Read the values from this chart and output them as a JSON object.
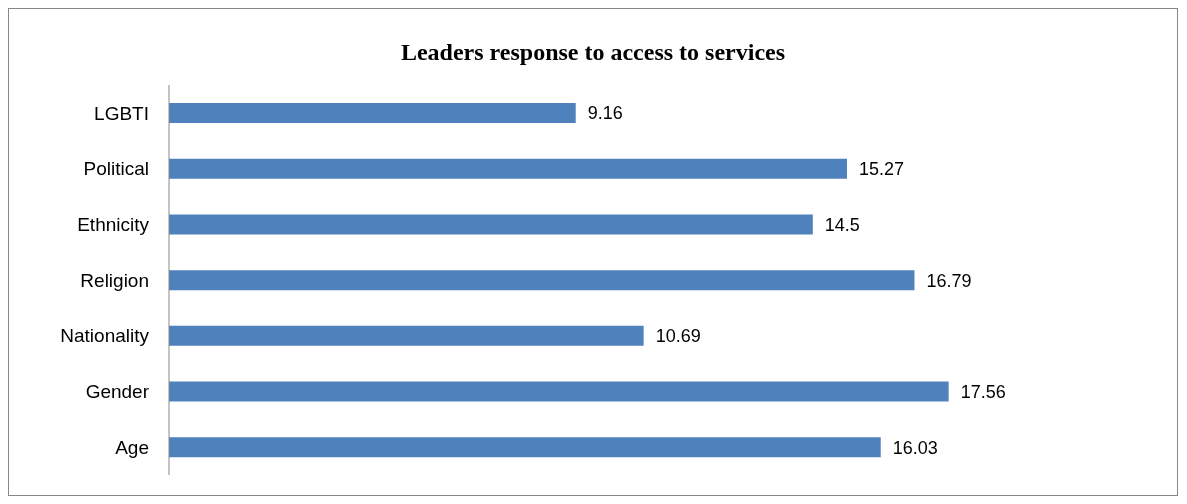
{
  "chart_data": {
    "type": "bar",
    "title": "Leaders response to access to services",
    "orientation": "horizontal",
    "categories": [
      "LGBTI",
      "Political",
      "Ethnicity",
      "Religion",
      "Nationality",
      "Gender",
      "Age"
    ],
    "values": [
      9.16,
      15.27,
      14.5,
      16.79,
      10.69,
      17.56,
      16.03
    ],
    "color": "#4f81bd",
    "data_labels": true,
    "tick_labels": "y"
  }
}
